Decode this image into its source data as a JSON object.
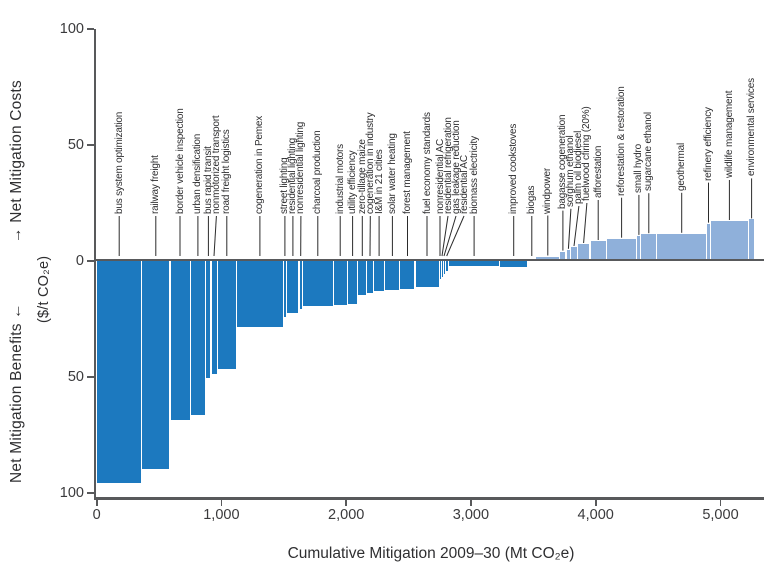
{
  "chart_data": {
    "type": "bar",
    "variant": "marginal-abatement-cost-curve",
    "title": "",
    "x_axis": {
      "title": "Cumulative Mitigation 2009–30 (Mt CO₂e)",
      "min": 0,
      "max": 5350,
      "ticks": [
        {
          "mt": 0,
          "label": "0"
        },
        {
          "mt": 1000,
          "label": "1,000"
        },
        {
          "mt": 2000,
          "label": "2,000"
        },
        {
          "mt": 3000,
          "label": "3,000"
        },
        {
          "mt": 4000,
          "label": "4,000"
        },
        {
          "mt": 5000,
          "label": "5,000"
        }
      ]
    },
    "y_axis": {
      "costs_label": "→ Net Mitigation Costs",
      "benefits_label": "Net Mitigation Benefits ←",
      "units": "($/t CO₂e)",
      "min": -100,
      "max": 100,
      "ticks": [
        {
          "value": 100,
          "label": "100"
        },
        {
          "value": 50,
          "label": "50"
        },
        {
          "value": 0,
          "label": "0"
        },
        {
          "value": -50,
          "label": "50"
        },
        {
          "value": -100,
          "label": "100"
        }
      ]
    },
    "colors": {
      "benefit_bar": "#1c79bf",
      "cost_bar": "#8fb0da",
      "axis": "#58595b",
      "leader_line": "#2b2b2b",
      "text": "#3a3a3c"
    },
    "legend": "none",
    "grid": false,
    "measures": [
      {
        "name": "bus system optimization",
        "mt": 360,
        "cost": -96
      },
      {
        "name": "railway freight",
        "mt": 228,
        "cost": -90
      },
      {
        "name": "border vehicle inspection",
        "mt": 160,
        "cost": -69
      },
      {
        "name": "urban densification",
        "mt": 126,
        "cost": -67
      },
      {
        "name": "bus rapid transit",
        "mt": 42,
        "cost": -51
      },
      {
        "name": "nonmotorized transport",
        "mt": 48,
        "cost": -49
      },
      {
        "name": "road freight logistics",
        "mt": 158,
        "cost": -47
      },
      {
        "name": "cogeneration in Pemex",
        "mt": 372,
        "cost": -29
      },
      {
        "name": "street lighting",
        "mt": 30,
        "cost": -24.5
      },
      {
        "name": "residential lighting",
        "mt": 98,
        "cost": -23
      },
      {
        "name": "nonresidential lighting",
        "mt": 26,
        "cost": -21
      },
      {
        "name": "charcoal production",
        "mt": 248,
        "cost": -20
      },
      {
        "name": "industrial motors",
        "mt": 112,
        "cost": -19.5
      },
      {
        "name": "utility efficiency",
        "mt": 86,
        "cost": -19
      },
      {
        "name": "zero-tillage maize",
        "mt": 70,
        "cost": -15
      },
      {
        "name": "cogeneration in industry",
        "mt": 54,
        "cost": -14.2
      },
      {
        "name": "I&M in 21 cities",
        "mt": 92,
        "cost": -13.5
      },
      {
        "name": "solar water heating",
        "mt": 120,
        "cost": -13
      },
      {
        "name": "forest management",
        "mt": 122,
        "cost": -12.3
      },
      {
        "name": "fuel economy standards",
        "mt": 192,
        "cost": -11.6
      },
      {
        "name": "nonresidential AC",
        "mt": 16,
        "cost": -8.2
      },
      {
        "name": "residential refrigeration",
        "mt": 16,
        "cost": -7.2
      },
      {
        "name": "gas leakage reduction",
        "mt": 16,
        "cost": -6
      },
      {
        "name": "residential AC",
        "mt": 28,
        "cost": -4.9
      },
      {
        "name": "biomass electricity",
        "mt": 410,
        "cost": -2.6
      },
      {
        "name": "improved cookstoves",
        "mt": 225,
        "cost": -3
      },
      {
        "name": "biogas",
        "mt": 65,
        "cost": -0.5
      },
      {
        "name": "windpower",
        "mt": 192,
        "cost": 1.5
      },
      {
        "name": "bagasse cogeneration",
        "mt": 50,
        "cost": 3.6
      },
      {
        "name": "sorghum ethanol",
        "mt": 38,
        "cost": 4.4
      },
      {
        "name": "palm oil biodiesel",
        "mt": 52,
        "cost": 5.6
      },
      {
        "name": "fuelwood cfiring (20%)",
        "mt": 102,
        "cost": 6.9
      },
      {
        "name": "afforestation",
        "mt": 132,
        "cost": 8.2
      },
      {
        "name": "reforestation & restoration",
        "mt": 244,
        "cost": 9.2
      },
      {
        "name": "small hydro",
        "mt": 32,
        "cost": 10.4
      },
      {
        "name": "sugarcane ethanol",
        "mt": 128,
        "cost": 11.1
      },
      {
        "name": "geothermal",
        "mt": 398,
        "cost": 11.3
      },
      {
        "name": "refinery efficiency",
        "mt": 32,
        "cost": 15.7
      },
      {
        "name": "wildlife management",
        "mt": 304,
        "cost": 16.8
      },
      {
        "name": "environmental services",
        "mt": 52,
        "cost": 17.5
      }
    ]
  }
}
